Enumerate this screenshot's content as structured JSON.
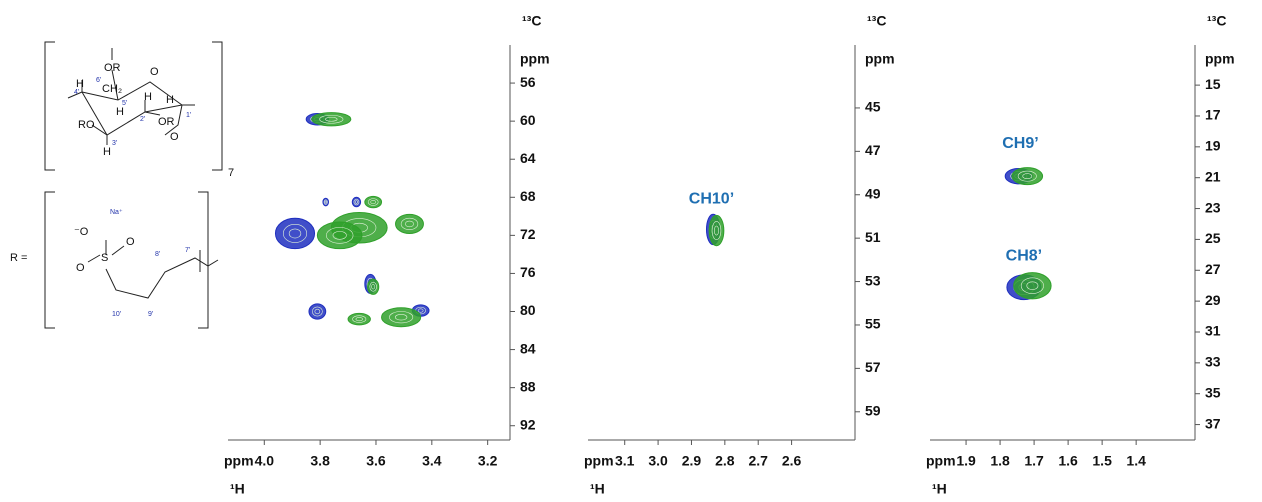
{
  "structure": {
    "labels": [
      "OR",
      "6'",
      "CH₂",
      "O",
      "H",
      "4'",
      "5'",
      "H",
      "H",
      "2'",
      "H",
      "1'",
      "RO",
      "3'",
      "OR",
      "O",
      "H",
      "7",
      "R =",
      "Na⁺",
      "⁻O",
      "S",
      "O",
      "O",
      "10'",
      "9'",
      "8'",
      "7'"
    ]
  },
  "chart_data": [
    {
      "type": "hsqc",
      "xlabel": "¹H",
      "x_unit": "ppm",
      "ylabel": "¹³C",
      "y_unit": "ppm",
      "xlim": [
        4.13,
        3.12
      ],
      "ylim": [
        52,
        93.5
      ],
      "xticks": [
        {
          "value": 4,
          "label": "4.0"
        },
        3.8,
        3.6,
        3.4,
        3.2
      ],
      "yticks": [
        56,
        60,
        64,
        68,
        72,
        76,
        80,
        84,
        88,
        92
      ],
      "series": [
        {
          "color": "#1f2fbf",
          "x": [
            3.81,
            3.89,
            3.67,
            3.78,
            3.62,
            3.81,
            3.44
          ],
          "y": [
            59.8,
            71.8,
            68.5,
            68.5,
            77.1,
            80.0,
            79.9
          ],
          "dx": [
            0.04,
            0.07,
            0.015,
            0.01,
            0.02,
            0.03,
            0.03
          ],
          "dy": [
            0.6,
            1.6,
            0.5,
            0.4,
            1.0,
            0.8,
            0.6
          ]
        },
        {
          "color": "#2fa02a",
          "x": [
            3.76,
            3.66,
            3.73,
            3.48,
            3.61,
            3.61,
            3.51,
            3.66
          ],
          "y": [
            59.8,
            71.2,
            72.0,
            70.8,
            68.5,
            77.4,
            80.6,
            80.8
          ],
          "dx": [
            0.07,
            0.1,
            0.08,
            0.05,
            0.03,
            0.02,
            0.07,
            0.04
          ],
          "dy": [
            0.7,
            1.6,
            1.4,
            1.0,
            0.6,
            0.8,
            1.0,
            0.6
          ]
        }
      ],
      "annotations": []
    },
    {
      "type": "hsqc",
      "xlabel": "¹H",
      "x_unit": "ppm",
      "ylabel": "¹³C",
      "y_unit": "ppm",
      "xlim": [
        3.21,
        2.41
      ],
      "ylim": [
        42.1,
        60.3
      ],
      "xticks": [
        3.1,
        {
          "value": 3,
          "label": "3.0"
        },
        2.9,
        2.8,
        2.7,
        2.6
      ],
      "yticks": [
        45,
        47,
        49,
        51,
        53,
        55,
        57,
        59
      ],
      "series": [
        {
          "color": "#1f2fbf",
          "x": [
            2.835
          ],
          "y": [
            50.6
          ],
          "dx": [
            0.02
          ],
          "dy": [
            0.7
          ]
        },
        {
          "color": "#2fa02a",
          "x": [
            2.825
          ],
          "y": [
            50.65
          ],
          "dx": [
            0.022
          ],
          "dy": [
            0.7
          ]
        }
      ],
      "annotations": [
        {
          "text": "CH10’",
          "x": 2.84,
          "y": 49.2,
          "color": "#1f6fb2"
        }
      ]
    },
    {
      "type": "hsqc",
      "xlabel": "¹H",
      "x_unit": "ppm",
      "ylabel": "¹³C",
      "y_unit": "ppm",
      "xlim": [
        2.006,
        1.227
      ],
      "ylim": [
        12.4,
        38
      ],
      "xticks": [
        1.9,
        1.8,
        1.7,
        1.6,
        1.5,
        1.4
      ],
      "yticks": [
        15,
        17,
        19,
        21,
        23,
        25,
        27,
        29,
        31,
        33,
        35,
        37
      ],
      "series": [
        {
          "color": "#1f2fbf",
          "x": [
            1.745,
            1.73
          ],
          "y": [
            20.9,
            28.1
          ],
          "dx": [
            0.04,
            0.05
          ],
          "dy": [
            0.5,
            0.8
          ]
        },
        {
          "color": "#2fa02a",
          "x": [
            1.72,
            1.705
          ],
          "y": [
            20.9,
            28.0
          ],
          "dx": [
            0.045,
            0.055
          ],
          "dy": [
            0.55,
            0.85
          ]
        }
      ],
      "annotations": [
        {
          "text": "CH9’",
          "x": 1.74,
          "y": 18.8,
          "color": "#1f6fb2"
        },
        {
          "text": "CH8’",
          "x": 1.73,
          "y": 26.1,
          "color": "#1f6fb2"
        }
      ]
    }
  ]
}
